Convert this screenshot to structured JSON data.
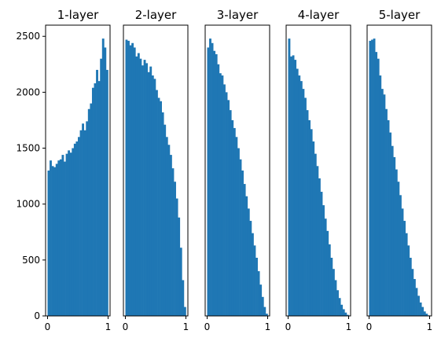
{
  "figure": {
    "background": "#ffffff",
    "bar_color": "#1f77b4",
    "axis_color": "#000000"
  },
  "chart_data": [
    {
      "type": "bar",
      "title": "1-layer",
      "xlim": [
        0,
        1
      ],
      "ylim": [
        0,
        2600
      ],
      "x_ticks": [
        0,
        1
      ],
      "y_ticks": [
        0,
        500,
        1000,
        1500,
        2000,
        2500
      ],
      "bin_count": 30,
      "values": [
        1300,
        1390,
        1340,
        1330,
        1360,
        1390,
        1400,
        1440,
        1380,
        1450,
        1480,
        1460,
        1500,
        1540,
        1560,
        1600,
        1660,
        1720,
        1660,
        1740,
        1850,
        1900,
        2040,
        2080,
        2200,
        2100,
        2300,
        2480,
        2400,
        2200
      ]
    },
    {
      "type": "bar",
      "title": "2-layer",
      "xlim": [
        0,
        1
      ],
      "ylim": [
        0,
        2600
      ],
      "x_ticks": [
        0,
        1
      ],
      "bin_count": 30,
      "values": [
        2470,
        2460,
        2420,
        2440,
        2400,
        2320,
        2350,
        2300,
        2240,
        2290,
        2260,
        2180,
        2230,
        2150,
        2120,
        2020,
        1950,
        1920,
        1820,
        1710,
        1600,
        1530,
        1440,
        1320,
        1200,
        1050,
        880,
        610,
        320,
        80
      ]
    },
    {
      "type": "bar",
      "title": "3-layer",
      "xlim": [
        0,
        1
      ],
      "ylim": [
        0,
        2600
      ],
      "x_ticks": [
        0,
        1
      ],
      "bin_count": 30,
      "values": [
        2400,
        2480,
        2440,
        2370,
        2340,
        2250,
        2170,
        2150,
        2070,
        2000,
        1930,
        1840,
        1750,
        1680,
        1600,
        1500,
        1400,
        1300,
        1180,
        1070,
        960,
        850,
        740,
        630,
        520,
        400,
        280,
        170,
        80,
        20
      ]
    },
    {
      "type": "bar",
      "title": "4-layer",
      "xlim": [
        0,
        1
      ],
      "ylim": [
        0,
        2600
      ],
      "x_ticks": [
        0,
        1
      ],
      "bin_count": 30,
      "values": [
        2480,
        2320,
        2330,
        2290,
        2210,
        2150,
        2100,
        2030,
        1950,
        1840,
        1750,
        1670,
        1560,
        1450,
        1340,
        1230,
        1110,
        990,
        870,
        760,
        640,
        520,
        420,
        320,
        230,
        160,
        100,
        60,
        30,
        10
      ]
    },
    {
      "type": "bar",
      "title": "5-layer",
      "xlim": [
        0,
        1
      ],
      "ylim": [
        0,
        2600
      ],
      "x_ticks": [
        0,
        1
      ],
      "bin_count": 30,
      "values": [
        2460,
        2470,
        2480,
        2360,
        2300,
        2150,
        2030,
        1980,
        1850,
        1750,
        1640,
        1520,
        1420,
        1310,
        1200,
        1080,
        960,
        850,
        740,
        630,
        520,
        420,
        330,
        250,
        180,
        120,
        80,
        40,
        20,
        5
      ]
    }
  ]
}
